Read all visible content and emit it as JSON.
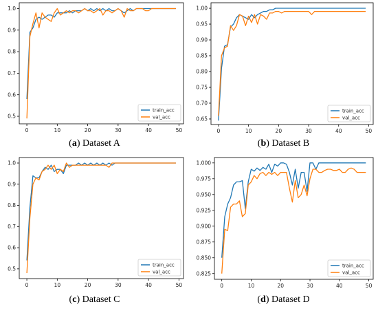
{
  "colors": {
    "train": "#1f77b4",
    "val": "#ff7f0e"
  },
  "captions": [
    {
      "label": "a",
      "text": "Dataset A"
    },
    {
      "label": "b",
      "text": "Dataset B"
    },
    {
      "label": "c",
      "text": "Dataset C"
    },
    {
      "label": "d",
      "text": "Dataset D"
    }
  ],
  "chart_data": [
    {
      "type": "line",
      "title": "",
      "caption": "(a) Dataset A",
      "xlabel": "",
      "ylabel": "",
      "xlim": [
        -2.5,
        51.5
      ],
      "ylim": [
        0.465,
        1.027
      ],
      "xticks": [
        0,
        10,
        20,
        30,
        40,
        50
      ],
      "yticks": [
        0.5,
        0.6,
        0.7,
        0.8,
        0.9,
        1.0
      ],
      "ytick_labels": [
        "0.5",
        "0.6",
        "0.7",
        "0.8",
        "0.9",
        "1.0"
      ],
      "legend": "bottom-right",
      "x": [
        0,
        1,
        2,
        3,
        4,
        5,
        6,
        7,
        8,
        9,
        10,
        11,
        12,
        13,
        14,
        15,
        16,
        17,
        18,
        19,
        20,
        21,
        22,
        23,
        24,
        25,
        26,
        27,
        28,
        29,
        30,
        31,
        32,
        33,
        34,
        35,
        36,
        37,
        38,
        39,
        40,
        41,
        42,
        43,
        44,
        45,
        46,
        47,
        48,
        49
      ],
      "series": [
        {
          "name": "train_acc",
          "values": [
            0.58,
            0.89,
            0.91,
            0.95,
            0.96,
            0.95,
            0.96,
            0.97,
            0.97,
            0.96,
            0.98,
            0.98,
            0.98,
            0.98,
            0.99,
            0.98,
            0.99,
            0.99,
            0.99,
            1.0,
            0.99,
            1.0,
            0.99,
            1.0,
            0.99,
            1.0,
            0.99,
            1.0,
            0.99,
            0.99,
            1.0,
            0.99,
            0.98,
            0.99,
            1.0,
            0.99,
            1.0,
            1.0,
            1.0,
            1.0,
            1.0,
            1.0,
            1.0,
            1.0,
            1.0,
            1.0,
            1.0,
            1.0,
            1.0,
            1.0
          ]
        },
        {
          "name": "val_acc",
          "values": [
            0.49,
            0.87,
            0.93,
            0.98,
            0.91,
            0.98,
            0.96,
            0.95,
            0.94,
            0.98,
            1.0,
            0.97,
            0.98,
            0.99,
            0.98,
            0.99,
            0.99,
            0.98,
            0.99,
            1.0,
            0.99,
            0.99,
            0.98,
            0.99,
            1.0,
            0.97,
            0.99,
            0.99,
            0.98,
            0.99,
            1.0,
            0.99,
            0.96,
            1.0,
            0.99,
            0.99,
            1.0,
            1.0,
            1.0,
            0.99,
            0.99,
            1.0,
            1.0,
            1.0,
            1.0,
            1.0,
            1.0,
            1.0,
            1.0,
            1.0
          ]
        }
      ]
    },
    {
      "type": "line",
      "title": "",
      "caption": "(b) Dataset B",
      "xlabel": "",
      "ylabel": "",
      "xlim": [
        -2.5,
        51.5
      ],
      "ylim": [
        0.6325,
        1.0175
      ],
      "xticks": [
        0,
        10,
        20,
        30,
        40,
        50
      ],
      "yticks": [
        0.65,
        0.7,
        0.75,
        0.8,
        0.85,
        0.9,
        0.95,
        1.0
      ],
      "ytick_labels": [
        "0.65",
        "0.70",
        "0.75",
        "0.80",
        "0.85",
        "0.90",
        "0.95",
        "1.00"
      ],
      "legend": "bottom-right",
      "x": [
        0,
        1,
        2,
        3,
        4,
        5,
        6,
        7,
        8,
        9,
        10,
        11,
        12,
        13,
        14,
        15,
        16,
        17,
        18,
        19,
        20,
        21,
        22,
        23,
        24,
        25,
        26,
        27,
        28,
        29,
        30,
        31,
        32,
        33,
        34,
        35,
        36,
        37,
        38,
        39,
        40,
        41,
        42,
        43,
        44,
        45,
        46,
        47,
        48,
        49
      ],
      "series": [
        {
          "name": "train_acc",
          "values": [
            0.645,
            0.81,
            0.88,
            0.885,
            0.94,
            0.95,
            0.97,
            0.98,
            0.975,
            0.97,
            0.965,
            0.98,
            0.97,
            0.98,
            0.985,
            0.99,
            0.99,
            0.995,
            0.995,
            1.0,
            1.0,
            1.0,
            1.0,
            1.0,
            1.0,
            1.0,
            1.0,
            1.0,
            1.0,
            1.0,
            1.0,
            1.0,
            1.0,
            1.0,
            1.0,
            1.0,
            1.0,
            1.0,
            1.0,
            1.0,
            1.0,
            1.0,
            1.0,
            1.0,
            1.0,
            1.0,
            1.0,
            1.0,
            1.0,
            1.0
          ]
        },
        {
          "name": "val_acc",
          "values": [
            0.66,
            0.85,
            0.875,
            0.88,
            0.945,
            0.93,
            0.945,
            0.98,
            0.975,
            0.945,
            0.975,
            0.955,
            0.98,
            0.95,
            0.98,
            0.975,
            0.965,
            0.985,
            0.985,
            0.99,
            0.99,
            0.985,
            0.99,
            0.99,
            0.99,
            0.99,
            0.99,
            0.99,
            0.99,
            0.99,
            0.99,
            0.98,
            0.99,
            0.99,
            0.99,
            0.99,
            0.99,
            0.99,
            0.99,
            0.99,
            0.99,
            0.99,
            0.99,
            0.99,
            0.99,
            0.99,
            0.99,
            0.99,
            0.99,
            0.99
          ]
        }
      ]
    },
    {
      "type": "line",
      "title": "",
      "caption": "(c) Dataset C",
      "xlabel": "",
      "ylabel": "",
      "xlim": [
        -2.5,
        51.5
      ],
      "ylim": [
        0.454,
        1.026
      ],
      "xticks": [
        0,
        10,
        20,
        30,
        40,
        50
      ],
      "yticks": [
        0.5,
        0.6,
        0.7,
        0.8,
        0.9,
        1.0
      ],
      "ytick_labels": [
        "0.5",
        "0.6",
        "0.7",
        "0.8",
        "0.9",
        "1.0"
      ],
      "legend": "bottom-right",
      "x": [
        0,
        1,
        2,
        3,
        4,
        5,
        6,
        7,
        8,
        9,
        10,
        11,
        12,
        13,
        14,
        15,
        16,
        17,
        18,
        19,
        20,
        21,
        22,
        23,
        24,
        25,
        26,
        27,
        28,
        29,
        30,
        31,
        32,
        33,
        34,
        35,
        36,
        37,
        38,
        39,
        40,
        41,
        42,
        43,
        44,
        45,
        46,
        47,
        48,
        49
      ],
      "series": [
        {
          "name": "train_acc",
          "values": [
            0.54,
            0.79,
            0.94,
            0.93,
            0.93,
            0.96,
            0.98,
            0.97,
            0.99,
            0.96,
            0.97,
            0.97,
            0.95,
            0.99,
            0.99,
            0.99,
            0.99,
            1.0,
            0.99,
            1.0,
            0.99,
            1.0,
            0.99,
            1.0,
            0.99,
            1.0,
            0.99,
            1.0,
            0.99,
            1.0,
            1.0,
            1.0,
            1.0,
            1.0,
            1.0,
            1.0,
            1.0,
            1.0,
            1.0,
            1.0,
            1.0,
            1.0,
            1.0,
            1.0,
            1.0,
            1.0,
            1.0,
            1.0,
            1.0,
            1.0
          ]
        },
        {
          "name": "val_acc",
          "values": [
            0.48,
            0.74,
            0.9,
            0.93,
            0.92,
            0.96,
            0.97,
            0.99,
            0.97,
            0.99,
            0.95,
            0.97,
            0.96,
            1.0,
            0.98,
            0.99,
            0.99,
            0.99,
            0.99,
            0.99,
            0.99,
            0.99,
            0.99,
            0.99,
            0.99,
            0.99,
            0.99,
            0.98,
            1.0,
            1.0,
            1.0,
            1.0,
            1.0,
            1.0,
            1.0,
            1.0,
            1.0,
            1.0,
            1.0,
            1.0,
            1.0,
            1.0,
            1.0,
            1.0,
            1.0,
            1.0,
            1.0,
            1.0,
            1.0,
            1.0
          ]
        }
      ]
    },
    {
      "type": "line",
      "title": "",
      "caption": "(d) Dataset D",
      "xlabel": "",
      "ylabel": "",
      "xlim": [
        -2.5,
        51.5
      ],
      "ylim": [
        0.816,
        1.0085
      ],
      "xticks": [
        0,
        10,
        20,
        30,
        40,
        50
      ],
      "yticks": [
        0.825,
        0.85,
        0.875,
        0.9,
        0.925,
        0.95,
        0.975,
        1.0
      ],
      "ytick_labels": [
        "0.825",
        "0.850",
        "0.875",
        "0.900",
        "0.925",
        "0.950",
        "0.975",
        "1.000"
      ],
      "legend": "bottom-right",
      "x": [
        0,
        1,
        2,
        3,
        4,
        5,
        6,
        7,
        8,
        9,
        10,
        11,
        12,
        13,
        14,
        15,
        16,
        17,
        18,
        19,
        20,
        21,
        22,
        23,
        24,
        25,
        26,
        27,
        28,
        29,
        30,
        31,
        32,
        33,
        34,
        35,
        36,
        37,
        38,
        39,
        40,
        41,
        42,
        43,
        44,
        45,
        46,
        47,
        48,
        49
      ],
      "series": [
        {
          "name": "train_acc",
          "values": [
            0.85,
            0.915,
            0.935,
            0.945,
            0.965,
            0.97,
            0.97,
            0.972,
            0.928,
            0.97,
            0.99,
            0.987,
            0.992,
            0.988,
            0.993,
            0.99,
            0.998,
            0.985,
            0.998,
            0.995,
            1.0,
            1.0,
            0.998,
            0.985,
            0.965,
            0.99,
            0.96,
            0.985,
            0.985,
            0.955,
            1.0,
            1.0,
            0.99,
            1.0,
            1.0,
            1.0,
            1.0,
            1.0,
            1.0,
            1.0,
            1.0,
            1.0,
            1.0,
            1.0,
            1.0,
            1.0,
            1.0,
            1.0,
            1.0,
            1.0
          ]
        },
        {
          "name": "val_acc",
          "values": [
            0.825,
            0.895,
            0.893,
            0.93,
            0.935,
            0.935,
            0.94,
            0.915,
            0.92,
            0.965,
            0.97,
            0.98,
            0.975,
            0.983,
            0.985,
            0.98,
            0.985,
            0.982,
            0.985,
            0.98,
            0.985,
            0.985,
            0.985,
            0.96,
            0.938,
            0.972,
            0.945,
            0.95,
            0.965,
            0.948,
            0.975,
            0.99,
            0.99,
            0.985,
            0.985,
            0.988,
            0.99,
            0.99,
            0.988,
            0.988,
            0.99,
            0.985,
            0.985,
            0.99,
            0.992,
            0.99,
            0.985,
            0.985,
            0.985,
            0.985
          ]
        }
      ]
    }
  ]
}
